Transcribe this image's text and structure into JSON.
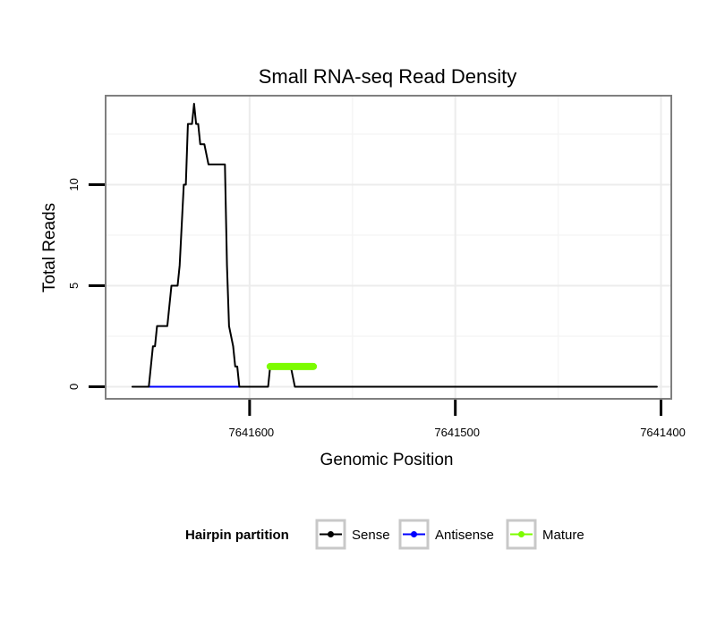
{
  "chart_data": {
    "type": "line",
    "title": "Small RNA-seq Read Density",
    "xlabel": "Genomic Position",
    "ylabel": "Total Reads",
    "xlim": [
      7641670,
      7641395
    ],
    "ylim": [
      -0.6,
      14.4
    ],
    "x_reversed": true,
    "x_ticks": [
      7641600,
      7641500,
      7641400
    ],
    "x_tick_labels": [
      "7641600",
      "7641500",
      "7641400"
    ],
    "y_ticks": [
      0,
      5,
      10
    ],
    "y_tick_labels": [
      "0",
      "5",
      "10"
    ],
    "grid": true,
    "legend": {
      "title": "Hairpin partition",
      "position": "bottom",
      "entries": [
        "Sense",
        "Antisense",
        "Mature"
      ]
    },
    "colors": {
      "Sense": "#000000",
      "Antisense": "#0000ff",
      "Mature": "#7cfc00"
    },
    "series": [
      {
        "name": "Sense",
        "x": [
          7641657,
          7641649,
          7641648,
          7641647,
          7641646,
          7641645,
          7641643,
          7641642,
          7641641,
          7641640,
          7641638,
          7641637,
          7641635,
          7641634,
          7641632,
          7641631,
          7641630,
          7641629,
          7641628,
          7641627,
          7641626,
          7641625,
          7641624,
          7641623,
          7641622,
          7641620,
          7641619,
          7641617,
          7641614,
          7641612,
          7641611,
          7641610,
          7641608,
          7641607,
          7641606,
          7641605,
          7641603,
          7641602,
          7641600,
          7641593,
          7641591,
          7641590,
          7641589,
          7641588,
          7641586,
          7641585,
          7641584,
          7641583,
          7641582,
          7641580,
          7641578,
          7641402
        ],
        "y": [
          0,
          0,
          1,
          2,
          2,
          3,
          3,
          3,
          3,
          3,
          5,
          5,
          5,
          6,
          10,
          10,
          13,
          13,
          13,
          14,
          13,
          13,
          12,
          12,
          12,
          11,
          11,
          11,
          11,
          11,
          6,
          3,
          2,
          1,
          1,
          0,
          0,
          0,
          0,
          0,
          0,
          1,
          1,
          1,
          1,
          1,
          1,
          1,
          1,
          1,
          0,
          0
        ]
      },
      {
        "name": "Antisense",
        "x": [
          7641649,
          7641603
        ],
        "y": [
          0,
          0
        ]
      },
      {
        "name": "Mature",
        "x": [
          7641590,
          7641569
        ],
        "y": [
          1,
          1
        ]
      }
    ]
  }
}
